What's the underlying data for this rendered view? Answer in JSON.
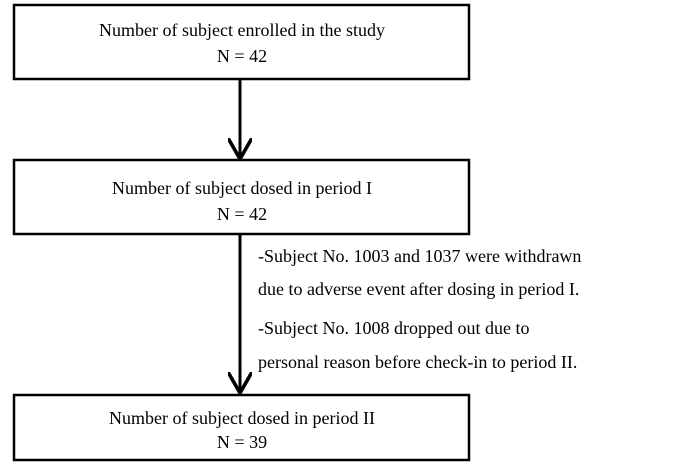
{
  "nodes": [
    {
      "label": "Number of subject enrolled in the study",
      "count": "N = 42"
    },
    {
      "label": "Number of subject dosed in period I",
      "count": "N = 42"
    },
    {
      "label": "Number of subject dosed in period II",
      "count": "N = 39"
    }
  ],
  "notes": [
    {
      "lines": [
        "-Subject No. 1003 and 1037 were withdrawn",
        "due to adverse event after dosing in period I."
      ]
    },
    {
      "lines": [
        "-Subject No. 1008 dropped out due to",
        "personal reason before check-in to period II."
      ]
    }
  ]
}
